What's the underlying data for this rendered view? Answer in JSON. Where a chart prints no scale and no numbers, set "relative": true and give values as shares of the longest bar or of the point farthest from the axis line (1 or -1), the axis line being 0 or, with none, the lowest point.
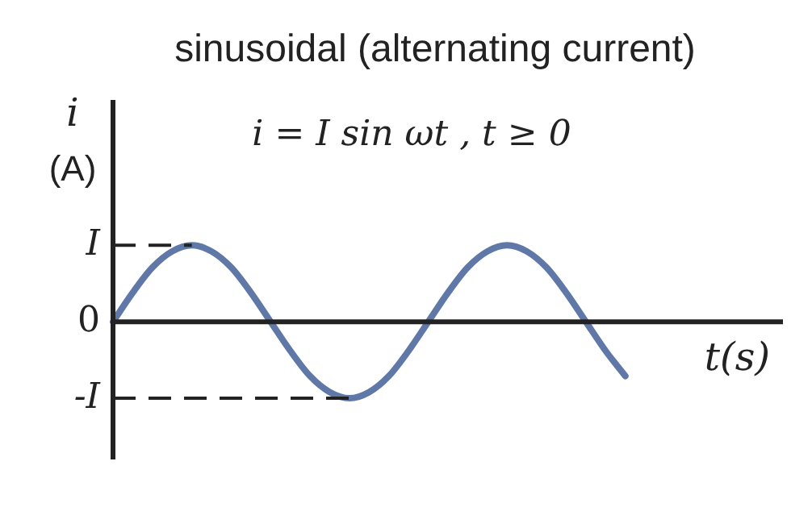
{
  "chart_data": {
    "type": "line",
    "title": "sinusoidal (alternating current)",
    "ylabel": "i (A)",
    "xlabel": "t(s)",
    "annotations": [
      "i = I sin ωt , t ≥ 0"
    ],
    "categories": [
      null,
      null,
      null,
      null,
      null,
      null,
      null,
      null,
      null,
      null,
      null,
      null,
      null,
      null,
      null,
      null,
      null,
      null,
      null,
      null,
      null,
      null,
      null,
      null,
      null,
      null,
      null,
      null,
      null,
      null,
      null,
      null,
      null,
      null,
      null
    ],
    "series": [
      {
        "color": "#5f78a8",
        "values": [
          0,
          0.38,
          0.71,
          0.92,
          1,
          0.92,
          0.71,
          0.38,
          0,
          -0.38,
          -0.71,
          -0.92,
          -1,
          -0.92,
          -0.71,
          -0.38,
          0,
          0.38,
          0.71,
          0.92,
          1,
          0.92,
          0.71,
          0.38,
          0,
          -0.38,
          -0.71,
          null,
          null,
          null,
          null,
          null,
          null,
          null,
          null
        ]
      }
    ],
    "relative": true,
    "legend": false,
    "marker": "none",
    "line_style": "solid",
    "ref_lines": [
      {
        "axis": "y",
        "value": 1,
        "label": "I",
        "line_style": "dashed",
        "color": "#222222"
      },
      {
        "axis": "y",
        "value": 0,
        "label": "0",
        "line_style": "solid",
        "color": "#222222"
      },
      {
        "axis": "y",
        "value": -1,
        "label": "-I",
        "line_style": "dashed",
        "color": "#222222"
      }
    ]
  }
}
